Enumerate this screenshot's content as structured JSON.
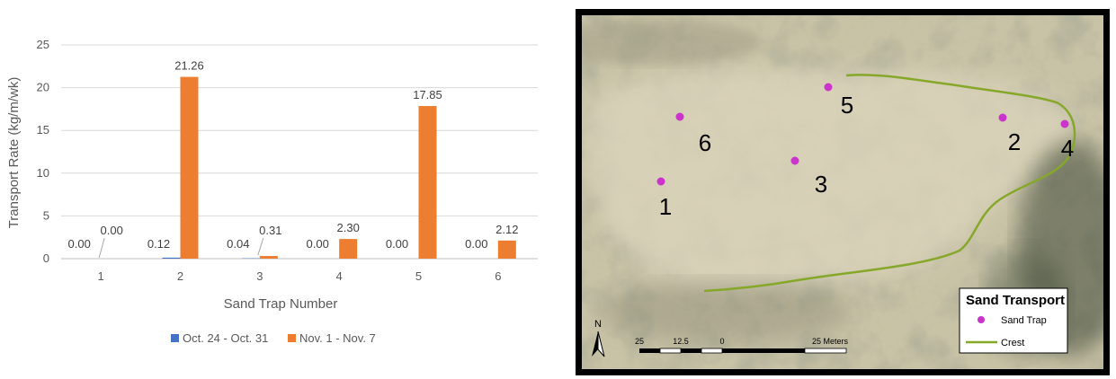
{
  "chart_data": {
    "type": "bar",
    "categories": [
      "1",
      "2",
      "3",
      "4",
      "5",
      "6"
    ],
    "series": [
      {
        "name": "Oct. 24 - Oct. 31",
        "color": "#4472C4",
        "values": [
          0.0,
          0.12,
          0.04,
          0.0,
          0.0,
          0.0
        ],
        "labels": [
          "0.00",
          "0.12",
          "0.04",
          "0.00",
          "0.00",
          "0.00"
        ]
      },
      {
        "name": "Nov. 1 - Nov. 7",
        "color": "#ED7D31",
        "values": [
          0.0,
          21.26,
          0.31,
          2.3,
          17.85,
          2.12
        ],
        "labels": [
          "0.00",
          "21.26",
          "0.31",
          "2.30",
          "17.85",
          "2.12"
        ]
      }
    ],
    "xlabel": "Sand Trap Number",
    "ylabel": "Transport Rate (kg/m/wk)",
    "ylim": [
      0,
      25
    ],
    "yticks": [
      "0",
      "5",
      "10",
      "15",
      "20",
      "25"
    ],
    "grid": true,
    "legend_position": "bottom"
  },
  "map": {
    "legend_title": "Sand Transport",
    "legend_items": [
      {
        "label": "Sand Trap",
        "symbol": "dot",
        "color": "#CC33CC"
      },
      {
        "label": "Crest",
        "symbol": "line",
        "color": "#86A82A"
      }
    ],
    "north_label": "N",
    "scale_labels": [
      "25",
      "12.5",
      "0",
      "25 Meters"
    ],
    "trap_labels": [
      "6",
      "5",
      "3",
      "1",
      "2",
      "4"
    ]
  }
}
